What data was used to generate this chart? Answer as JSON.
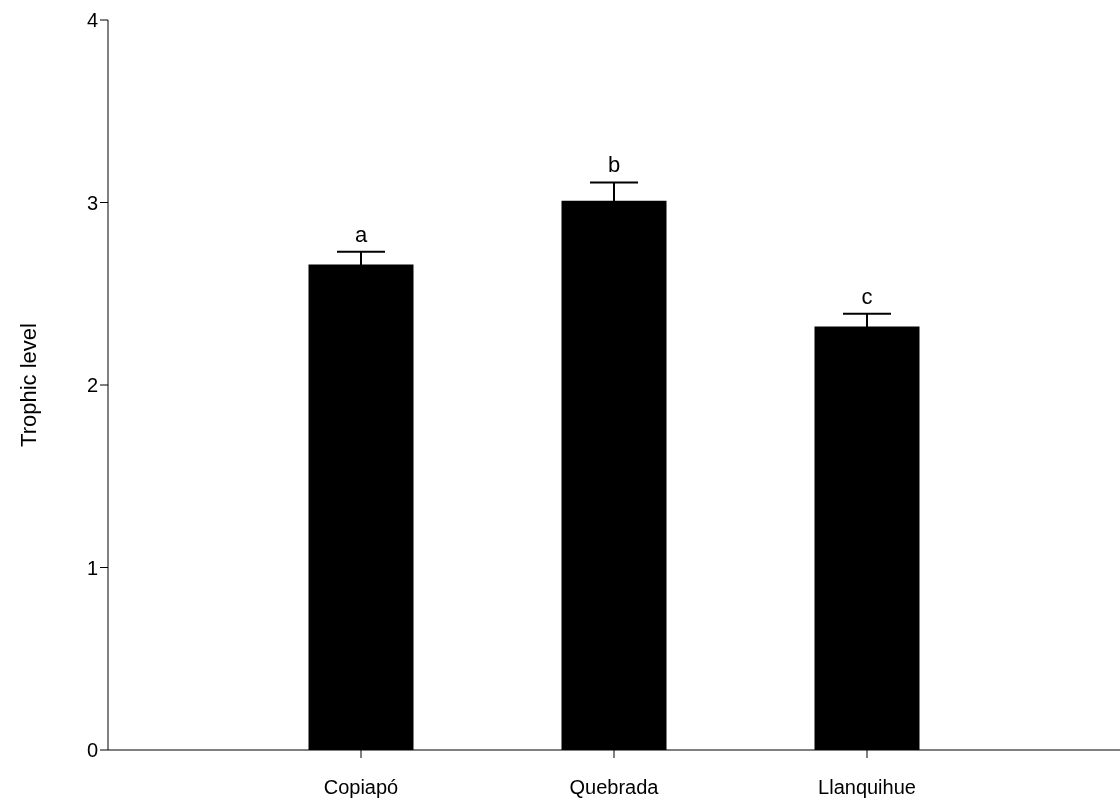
{
  "chart_data": {
    "type": "bar",
    "ylabel": "Trophic level",
    "categories": [
      "Copiapó",
      "Quebrada",
      "Llanquihue"
    ],
    "values": [
      2.66,
      3.01,
      2.32
    ],
    "errors": [
      0.07,
      0.1,
      0.07
    ],
    "color": "#000000",
    "ylim": [
      0,
      4
    ],
    "yticks": [
      0,
      1,
      2,
      3,
      4
    ],
    "grid": false,
    "legend": false,
    "annotations": [
      "a",
      "b",
      "c"
    ]
  }
}
